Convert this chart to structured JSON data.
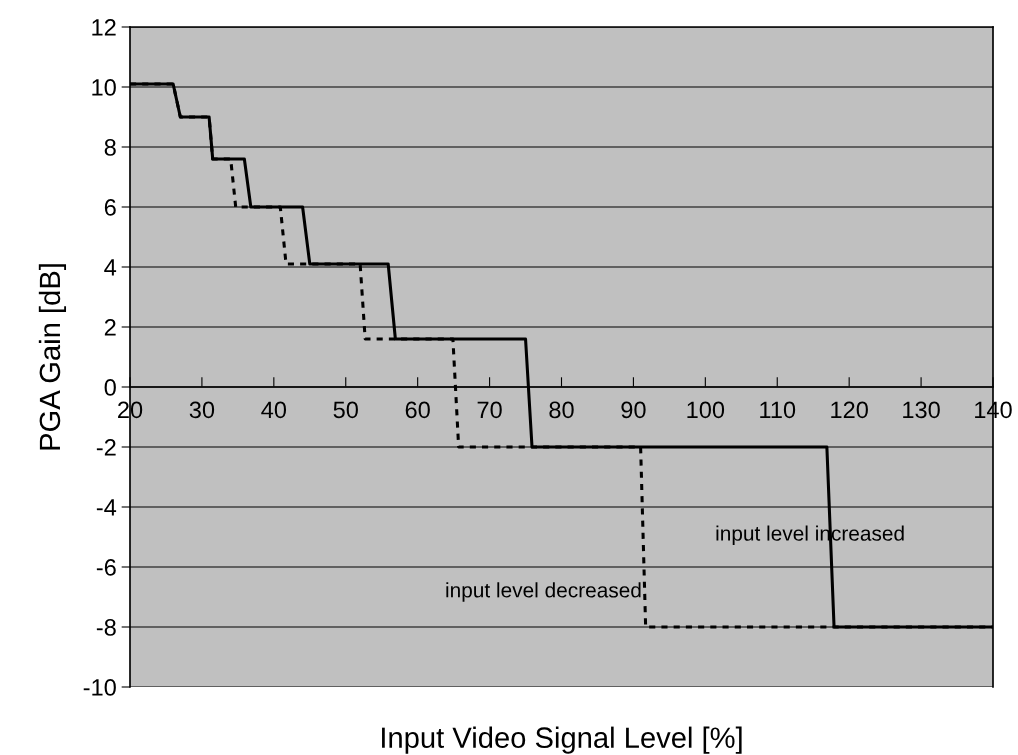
{
  "chart_data": {
    "type": "line",
    "xlabel": "Input Video Signal Level [%]",
    "ylabel": "PGA Gain [dB]",
    "series": [
      {
        "color": "#000000",
        "line_style": "dotted",
        "x": [
          20,
          26,
          27,
          31,
          31.5,
          34,
          34.7,
          40.9,
          41.7,
          52,
          52.7,
          64.9,
          65.7,
          91,
          91.7,
          140
        ],
        "values": [
          10.1,
          10.1,
          9,
          9,
          7.6,
          7.6,
          6,
          6,
          4.1,
          4.1,
          1.6,
          1.6,
          -2,
          -2,
          -8,
          -8
        ]
      },
      {
        "color": "#000000",
        "line_style": "solid",
        "x": [
          20,
          26,
          27,
          31,
          31.5,
          35.9,
          36.8,
          44,
          45,
          55.9,
          56.9,
          75,
          75.9,
          116.9,
          117.9,
          140
        ],
        "values": [
          10.1,
          10.1,
          9,
          9,
          7.6,
          7.6,
          6,
          6,
          4.1,
          4.1,
          1.6,
          1.6,
          -2,
          -2,
          -8,
          -8
        ]
      }
    ],
    "xlim": [
      20,
      140
    ],
    "xticks": [
      20,
      30,
      40,
      50,
      60,
      70,
      80,
      90,
      100,
      110,
      120,
      130,
      140
    ],
    "ylim": [
      -10,
      12
    ],
    "yticks": [
      -10,
      -8,
      -6,
      -4,
      -2,
      0,
      2,
      4,
      6,
      8,
      10,
      12
    ],
    "grid": "y",
    "marker": "none",
    "legend": false,
    "annotations": [
      "input level increased",
      "input level decreased"
    ]
  }
}
